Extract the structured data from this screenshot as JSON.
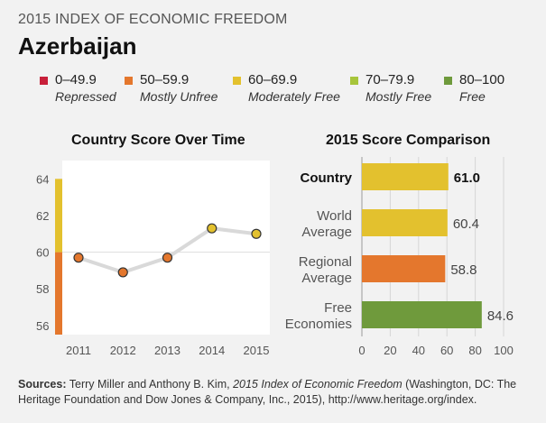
{
  "header": {
    "kicker": "2015 INDEX OF ECONOMIC FREEDOM",
    "country": "Azerbaijan"
  },
  "legend": [
    {
      "range": "0–49.9",
      "label": "Repressed",
      "color": "#c8203a"
    },
    {
      "range": "50–59.9",
      "label": "Mostly Unfree",
      "color": "#e4772d"
    },
    {
      "range": "60–69.9",
      "label": "Moderately Free",
      "color": "#e3c12e"
    },
    {
      "range": "70–79.9",
      "label": "Mostly Free",
      "color": "#a7c53b"
    },
    {
      "range": "80–100",
      "label": "Free",
      "color": "#6f9a3c"
    }
  ],
  "chart_data": [
    {
      "type": "line",
      "title": "Country Score Over Time",
      "x": [
        "2011",
        "2012",
        "2013",
        "2014",
        "2015"
      ],
      "series": [
        {
          "values": [
            59.7,
            58.9,
            59.7,
            61.3,
            61.0
          ]
        }
      ],
      "ylim": [
        55.5,
        65
      ],
      "yticks": [
        "64",
        "62",
        "60",
        "58",
        "56"
      ],
      "background": "#ffffff",
      "line_color": "#d9d9d9"
    },
    {
      "type": "bar",
      "orientation": "horizontal",
      "title": "2015 Score Comparison",
      "categories": [
        [
          "Country"
        ],
        [
          "World",
          "Average"
        ],
        [
          "Regional",
          "Average"
        ],
        [
          "Free",
          "Economies"
        ]
      ],
      "values": [
        61.0,
        60.4,
        58.8,
        84.6
      ],
      "value_labels": [
        "61.0",
        "60.4",
        "58.8",
        "84.6"
      ],
      "colors": [
        "#e3c12e",
        "#e3c12e",
        "#e4772d",
        "#6f9a3c"
      ],
      "xlim": [
        0,
        100
      ],
      "xticks": [
        "0",
        "20",
        "40",
        "60",
        "80",
        "100"
      ]
    }
  ],
  "sources": {
    "label": "Sources:",
    "text1": " Terry Miller and Anthony B. Kim, ",
    "italic": "2015 Index of Economic Freedom",
    "text2": " (Washington, DC: The Heritage Foundation and Dow Jones & Company, Inc., 2015), http://www.heritage.org/index."
  }
}
